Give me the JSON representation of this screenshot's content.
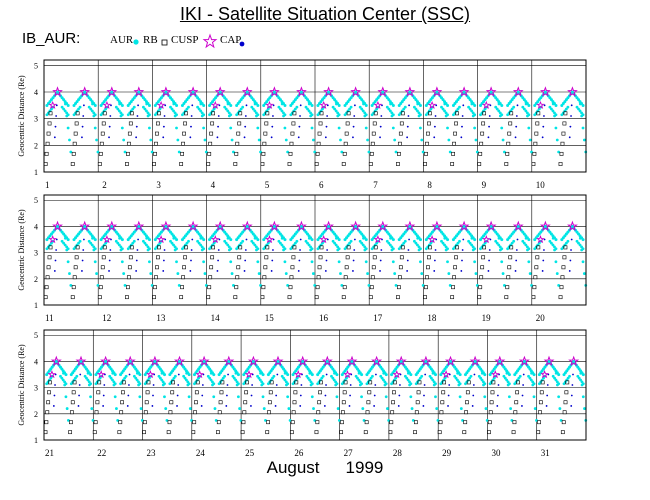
{
  "title": "IKI - Satellite Situation Center (SSC)",
  "satellite_label": "IB_AUR:",
  "legend": [
    {
      "label": "AUR",
      "marker": "filled-circle",
      "color": "#00e5e5"
    },
    {
      "label": "RB",
      "marker": "square",
      "color": "#000000"
    },
    {
      "label": "CUSP",
      "marker": "star",
      "color": "#cc00cc"
    },
    {
      "label": "CAP",
      "marker": "filled-circle",
      "color": "#0000cc"
    }
  ],
  "footer": {
    "month": "August",
    "year": "1999"
  },
  "colors": {
    "aur": "#00e5e5",
    "rb": "#000000",
    "cusp": "#cc00cc",
    "cap": "#0000cc",
    "frame": "#000000"
  },
  "chart_data": [
    {
      "type": "scatter",
      "ylabel": "Geocentric Distance (Re)",
      "ylim": [
        1,
        5.2
      ],
      "yticks": [
        "1",
        "2",
        "3",
        "4",
        "5"
      ],
      "xlim": [
        1,
        11
      ],
      "xticks": [
        "1",
        "2",
        "3",
        "4",
        "5",
        "6",
        "7",
        "8",
        "9",
        "10"
      ],
      "grid": true,
      "series": [
        {
          "name": "AUR",
          "marker": "filled-circle",
          "apogee_re": 4.0,
          "note": "dense band 3.2–4.0 Re near every apogee"
        },
        {
          "name": "RB",
          "marker": "square",
          "range_re": [
            1.2,
            3.4
          ]
        },
        {
          "name": "CUSP",
          "marker": "star",
          "apogee_re": 4.0
        },
        {
          "name": "CAP",
          "marker": "filled-circle",
          "range_re": [
            2.2,
            3.7
          ]
        }
      ],
      "orbits_per_day": 2
    },
    {
      "type": "scatter",
      "ylabel": "Geocentric Distance (Re)",
      "ylim": [
        1,
        5.2
      ],
      "yticks": [
        "1",
        "2",
        "3",
        "4",
        "5"
      ],
      "xlim": [
        11,
        21
      ],
      "xticks": [
        "11",
        "12",
        "13",
        "14",
        "15",
        "16",
        "17",
        "18",
        "19",
        "20"
      ],
      "grid": true,
      "series": [
        {
          "name": "AUR",
          "marker": "filled-circle",
          "apogee_re": 4.0
        },
        {
          "name": "RB",
          "marker": "square",
          "range_re": [
            1.2,
            3.4
          ]
        },
        {
          "name": "CUSP",
          "marker": "star",
          "apogee_re": 4.0
        },
        {
          "name": "CAP",
          "marker": "filled-circle",
          "range_re": [
            2.2,
            3.7
          ]
        }
      ],
      "orbits_per_day": 2
    },
    {
      "type": "scatter",
      "ylabel": "Geocentric Distance (Re)",
      "ylim": [
        1,
        5.2
      ],
      "yticks": [
        "1",
        "2",
        "3",
        "4",
        "5"
      ],
      "xlim": [
        21,
        32
      ],
      "xticks": [
        "21",
        "22",
        "23",
        "24",
        "25",
        "26",
        "27",
        "28",
        "29",
        "30",
        "31"
      ],
      "grid": true,
      "series": [
        {
          "name": "AUR",
          "marker": "filled-circle",
          "apogee_re": 4.0
        },
        {
          "name": "RB",
          "marker": "square",
          "range_re": [
            1.2,
            3.4
          ]
        },
        {
          "name": "CUSP",
          "marker": "star",
          "apogee_re": 4.0
        },
        {
          "name": "CAP",
          "marker": "filled-circle",
          "range_re": [
            2.2,
            3.7
          ]
        }
      ],
      "orbits_per_day": 2
    }
  ]
}
